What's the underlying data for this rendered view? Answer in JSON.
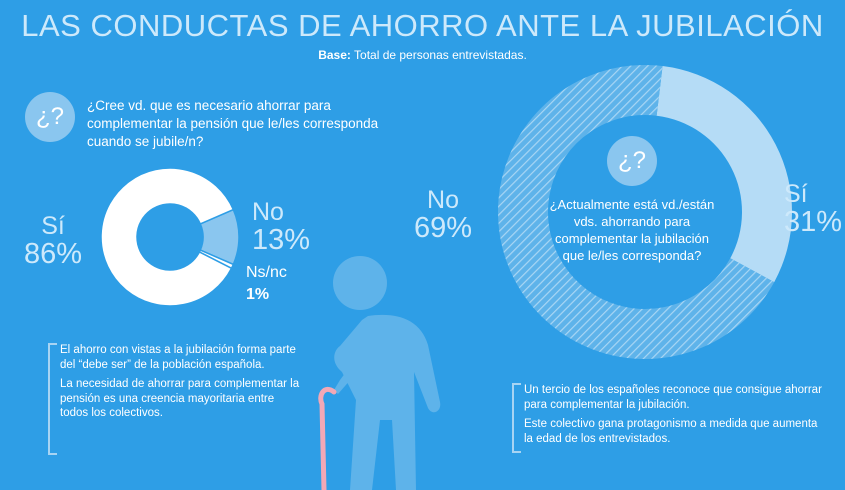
{
  "header": {
    "title": "LAS CONDUCTAS DE AHORRO ANTE LA JUBILACIÓN",
    "base_label": "Base:",
    "base_text": "Total de personas entrevistadas."
  },
  "question_badge": "¿?",
  "chart_data": [
    {
      "type": "pie",
      "title": "¿Cree vd. que es necesario ahorrar para complementar la pensión que le/les corresponda cuando se jubile/n?",
      "slices": [
        {
          "label": "Sí",
          "value": 86,
          "display": "86%",
          "color": "#ffffff"
        },
        {
          "label": "No",
          "value": 13,
          "display": "13%",
          "color": "#8ac6ef"
        },
        {
          "label": "Ns/nc",
          "value": 1,
          "display": "1%",
          "color": "#ffffff"
        }
      ]
    },
    {
      "type": "pie",
      "title": "¿Actualmente está vd./están vds. ahorrando para complementar la jubilación que le/les corresponda?",
      "slices": [
        {
          "label": "No",
          "value": 69,
          "display": "69%",
          "color": "#8ac6ef",
          "pattern": "hatched"
        },
        {
          "label": "Sí",
          "value": 31,
          "display": "31%",
          "color": "#b5dcf6"
        }
      ]
    }
  ],
  "notes_left": [
    "El ahorro con vistas a la jubilación forma parte del “debe ser” de la población española.",
    "La necesidad de ahorrar para complementar la pensión es una creencia mayoritaria entre todos los colectivos."
  ],
  "notes_right": [
    "Un tercio de los españoles reconoce que consigue ahorrar para complementar la jubilación.",
    "Este colectivo gana protagonismo a medida que aumenta la edad de los entrevistados."
  ],
  "colors": {
    "background": "#2e9ee6",
    "title": "#cde9fb",
    "light_blue": "#8ac6ef",
    "figure": "#5eb3ea"
  },
  "icons": [
    "question-badge-icon",
    "elderly-person-with-cane-icon"
  ]
}
